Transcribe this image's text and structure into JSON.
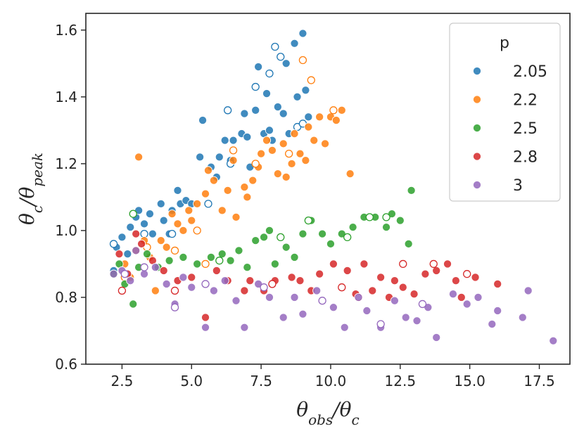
{
  "chart_data": {
    "type": "scatter",
    "xlabel_parts": [
      [
        "θ",
        ""
      ],
      [
        "obs",
        "sub"
      ],
      [
        "/θ",
        ""
      ],
      [
        "c",
        "sub"
      ]
    ],
    "ylabel_parts": [
      [
        "θ",
        ""
      ],
      [
        "c",
        "sub"
      ],
      [
        "/θ",
        ""
      ],
      [
        "peak",
        "sub"
      ]
    ],
    "xlim": [
      1.2,
      18.6
    ],
    "ylim": [
      0.6,
      1.65
    ],
    "xticks": [
      "2.5",
      "5.0",
      "7.5",
      "10.0",
      "12.5",
      "15.0",
      "17.5"
    ],
    "xtick_values": [
      2.5,
      5.0,
      7.5,
      10.0,
      12.5,
      15.0,
      17.5
    ],
    "yticks": [
      "0.6",
      "0.8",
      "1.0",
      "1.2",
      "1.4",
      "1.6"
    ],
    "ytick_values": [
      0.6,
      0.8,
      1.0,
      1.2,
      1.4,
      1.6
    ],
    "grid": false,
    "legend": {
      "title": "p",
      "placement": "top-right"
    },
    "series": [
      {
        "name": "2.05",
        "color": "#1f77b4",
        "filled": [
          [
            2.2,
            0.88
          ],
          [
            2.3,
            0.95
          ],
          [
            2.5,
            0.98
          ],
          [
            2.7,
            0.93
          ],
          [
            2.8,
            1.01
          ],
          [
            3.0,
            1.04
          ],
          [
            3.1,
            1.06
          ],
          [
            3.3,
            1.02
          ],
          [
            3.5,
            1.05
          ],
          [
            3.6,
            0.99
          ],
          [
            3.9,
            1.08
          ],
          [
            4.0,
            1.03
          ],
          [
            4.2,
            0.99
          ],
          [
            4.3,
            1.06
          ],
          [
            4.5,
            1.12
          ],
          [
            4.6,
            1.08
          ],
          [
            4.8,
            1.09
          ],
          [
            5.0,
            1.08
          ],
          [
            5.3,
            1.22
          ],
          [
            5.4,
            1.33
          ],
          [
            5.7,
            1.19
          ],
          [
            5.9,
            1.16
          ],
          [
            6.0,
            1.22
          ],
          [
            6.2,
            1.27
          ],
          [
            6.4,
            1.21
          ],
          [
            6.5,
            1.27
          ],
          [
            6.8,
            1.29
          ],
          [
            6.9,
            1.35
          ],
          [
            7.0,
            1.28
          ],
          [
            7.1,
            1.19
          ],
          [
            7.3,
            1.36
          ],
          [
            7.4,
            1.49
          ],
          [
            7.6,
            1.29
          ],
          [
            7.7,
            1.41
          ],
          [
            7.8,
            1.3
          ],
          [
            7.9,
            1.27
          ],
          [
            8.1,
            1.37
          ],
          [
            8.3,
            1.35
          ],
          [
            8.4,
            1.5
          ],
          [
            8.5,
            1.29
          ],
          [
            8.7,
            1.56
          ],
          [
            8.8,
            1.4
          ],
          [
            9.0,
            1.59
          ],
          [
            9.1,
            1.42
          ],
          [
            9.2,
            1.34
          ]
        ],
        "hollow": [
          [
            2.2,
            0.96
          ],
          [
            3.3,
            0.99
          ],
          [
            4.3,
            0.99
          ],
          [
            5.6,
            1.08
          ],
          [
            6.3,
            1.36
          ],
          [
            6.4,
            1.2
          ],
          [
            7.3,
            1.43
          ],
          [
            7.8,
            1.47
          ],
          [
            8.0,
            1.55
          ],
          [
            8.2,
            1.52
          ],
          [
            8.8,
            1.31
          ],
          [
            9.0,
            1.32
          ]
        ]
      },
      {
        "name": "2.2",
        "color": "#ff7f0e",
        "filled": [
          [
            2.6,
            0.9
          ],
          [
            2.8,
            0.86
          ],
          [
            3.0,
            0.94
          ],
          [
            3.1,
            1.22
          ],
          [
            3.3,
            0.97
          ],
          [
            3.5,
            0.92
          ],
          [
            3.7,
            0.82
          ],
          [
            3.9,
            0.97
          ],
          [
            4.1,
            0.95
          ],
          [
            4.3,
            1.05
          ],
          [
            4.5,
            1.02
          ],
          [
            4.7,
            1.0
          ],
          [
            4.9,
            1.06
          ],
          [
            5.0,
            1.03
          ],
          [
            5.2,
            1.08
          ],
          [
            5.5,
            1.11
          ],
          [
            5.6,
            1.18
          ],
          [
            5.8,
            1.15
          ],
          [
            6.1,
            1.06
          ],
          [
            6.3,
            1.12
          ],
          [
            6.5,
            1.21
          ],
          [
            6.6,
            1.04
          ],
          [
            6.9,
            1.13
          ],
          [
            7.0,
            1.1
          ],
          [
            7.2,
            1.15
          ],
          [
            7.4,
            1.19
          ],
          [
            7.5,
            1.23
          ],
          [
            7.7,
            1.27
          ],
          [
            7.9,
            1.24
          ],
          [
            8.1,
            1.17
          ],
          [
            8.3,
            1.26
          ],
          [
            8.4,
            1.16
          ],
          [
            8.6,
            1.2
          ],
          [
            8.7,
            1.29
          ],
          [
            8.9,
            1.23
          ],
          [
            9.1,
            1.21
          ],
          [
            9.2,
            1.31
          ],
          [
            9.4,
            1.27
          ],
          [
            9.6,
            1.34
          ],
          [
            9.8,
            1.26
          ],
          [
            10.0,
            1.34
          ],
          [
            10.2,
            1.33
          ],
          [
            10.4,
            1.36
          ],
          [
            10.7,
            1.17
          ]
        ],
        "hollow": [
          [
            2.6,
            0.86
          ],
          [
            3.4,
            0.95
          ],
          [
            4.4,
            0.94
          ],
          [
            5.2,
            1.0
          ],
          [
            5.5,
            0.9
          ],
          [
            6.5,
            1.24
          ],
          [
            7.3,
            1.2
          ],
          [
            8.5,
            1.23
          ],
          [
            9.0,
            1.51
          ],
          [
            9.3,
            1.45
          ],
          [
            10.1,
            1.36
          ]
        ]
      },
      {
        "name": "2.5",
        "color": "#2ca02c",
        "filled": [
          [
            2.2,
            0.87
          ],
          [
            2.4,
            0.9
          ],
          [
            2.6,
            0.84
          ],
          [
            2.9,
            0.78
          ],
          [
            3.1,
            0.89
          ],
          [
            3.4,
            0.93
          ],
          [
            3.8,
            0.89
          ],
          [
            4.2,
            0.91
          ],
          [
            4.7,
            0.92
          ],
          [
            5.2,
            0.9
          ],
          [
            5.7,
            0.92
          ],
          [
            6.1,
            0.93
          ],
          [
            6.4,
            0.91
          ],
          [
            6.7,
            0.94
          ],
          [
            7.0,
            0.89
          ],
          [
            7.3,
            0.97
          ],
          [
            7.6,
            0.98
          ],
          [
            7.8,
            1.0
          ],
          [
            8.0,
            0.9
          ],
          [
            8.4,
            0.95
          ],
          [
            8.7,
            0.92
          ],
          [
            9.0,
            0.99
          ],
          [
            9.3,
            1.03
          ],
          [
            9.7,
            0.99
          ],
          [
            10.0,
            0.96
          ],
          [
            10.4,
            0.99
          ],
          [
            10.8,
            1.01
          ],
          [
            11.2,
            1.04
          ],
          [
            11.6,
            1.04
          ],
          [
            12.0,
            1.01
          ],
          [
            12.2,
            1.05
          ],
          [
            12.5,
            1.03
          ],
          [
            12.8,
            0.96
          ],
          [
            12.9,
            1.12
          ]
        ],
        "hollow": [
          [
            2.9,
            1.05
          ],
          [
            6.0,
            0.91
          ],
          [
            8.2,
            0.98
          ],
          [
            9.2,
            1.03
          ],
          [
            10.6,
            0.98
          ],
          [
            11.4,
            1.04
          ],
          [
            12.0,
            1.04
          ]
        ]
      },
      {
        "name": "2.8",
        "color": "#d62728",
        "filled": [
          [
            2.4,
            0.93
          ],
          [
            2.7,
            0.87
          ],
          [
            3.0,
            0.99
          ],
          [
            3.2,
            0.96
          ],
          [
            3.6,
            0.91
          ],
          [
            4.0,
            0.88
          ],
          [
            4.5,
            0.85
          ],
          [
            5.0,
            0.86
          ],
          [
            5.5,
            0.74
          ],
          [
            5.9,
            0.88
          ],
          [
            6.3,
            0.85
          ],
          [
            6.9,
            0.82
          ],
          [
            7.1,
            0.85
          ],
          [
            7.6,
            0.82
          ],
          [
            8.0,
            0.85
          ],
          [
            8.6,
            0.86
          ],
          [
            8.9,
            0.85
          ],
          [
            9.3,
            0.82
          ],
          [
            9.6,
            0.87
          ],
          [
            10.1,
            0.9
          ],
          [
            10.6,
            0.88
          ],
          [
            10.9,
            0.81
          ],
          [
            11.2,
            0.9
          ],
          [
            11.5,
            0.82
          ],
          [
            11.8,
            0.86
          ],
          [
            12.1,
            0.8
          ],
          [
            12.3,
            0.85
          ],
          [
            12.6,
            0.83
          ],
          [
            13.0,
            0.81
          ],
          [
            13.4,
            0.87
          ],
          [
            13.8,
            0.88
          ],
          [
            14.2,
            0.9
          ],
          [
            14.5,
            0.85
          ],
          [
            14.7,
            0.8
          ],
          [
            15.2,
            0.86
          ],
          [
            16.0,
            0.84
          ]
        ],
        "hollow": [
          [
            2.5,
            0.82
          ],
          [
            4.4,
            0.82
          ],
          [
            7.9,
            0.84
          ],
          [
            10.4,
            0.83
          ],
          [
            11.0,
            0.8
          ],
          [
            12.6,
            0.9
          ],
          [
            13.7,
            0.9
          ],
          [
            14.9,
            0.87
          ]
        ]
      },
      {
        "name": "3",
        "color": "#9467bd",
        "filled": [
          [
            2.2,
            0.87
          ],
          [
            2.5,
            0.88
          ],
          [
            2.8,
            0.85
          ],
          [
            3.0,
            0.94
          ],
          [
            3.3,
            0.87
          ],
          [
            3.7,
            0.89
          ],
          [
            4.1,
            0.84
          ],
          [
            4.4,
            0.78
          ],
          [
            4.7,
            0.86
          ],
          [
            5.0,
            0.83
          ],
          [
            5.5,
            0.71
          ],
          [
            5.8,
            0.82
          ],
          [
            6.2,
            0.85
          ],
          [
            6.6,
            0.79
          ],
          [
            6.9,
            0.71
          ],
          [
            7.4,
            0.84
          ],
          [
            7.8,
            0.8
          ],
          [
            8.3,
            0.74
          ],
          [
            8.7,
            0.8
          ],
          [
            9.0,
            0.75
          ],
          [
            9.5,
            0.82
          ],
          [
            10.1,
            0.77
          ],
          [
            10.5,
            0.71
          ],
          [
            11.0,
            0.8
          ],
          [
            11.3,
            0.76
          ],
          [
            11.8,
            0.71
          ],
          [
            12.3,
            0.79
          ],
          [
            12.7,
            0.74
          ],
          [
            13.1,
            0.73
          ],
          [
            13.5,
            0.77
          ],
          [
            13.8,
            0.68
          ],
          [
            14.4,
            0.81
          ],
          [
            14.9,
            0.78
          ],
          [
            15.3,
            0.8
          ],
          [
            15.8,
            0.72
          ],
          [
            16.0,
            0.76
          ],
          [
            16.9,
            0.74
          ],
          [
            17.1,
            0.82
          ],
          [
            18.0,
            0.67
          ]
        ],
        "hollow": [
          [
            2.6,
            0.87
          ],
          [
            3.3,
            0.89
          ],
          [
            4.4,
            0.77
          ],
          [
            5.5,
            0.84
          ],
          [
            7.6,
            0.83
          ],
          [
            9.7,
            0.79
          ],
          [
            11.8,
            0.72
          ],
          [
            13.3,
            0.78
          ]
        ]
      }
    ]
  }
}
